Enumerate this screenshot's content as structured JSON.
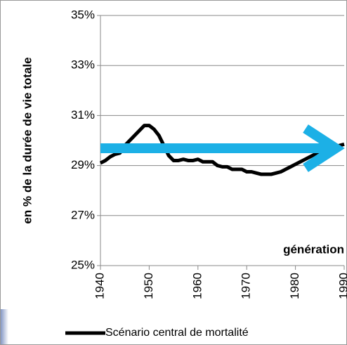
{
  "chart_data": {
    "type": "line",
    "y_axis_label": "en % de la durée de vie totale",
    "annotation": "génération",
    "x": [
      1940,
      1941,
      1942,
      1943,
      1944,
      1945,
      1946,
      1947,
      1948,
      1949,
      1950,
      1951,
      1952,
      1953,
      1954,
      1955,
      1956,
      1957,
      1958,
      1959,
      1960,
      1961,
      1962,
      1963,
      1964,
      1965,
      1966,
      1967,
      1968,
      1969,
      1970,
      1971,
      1972,
      1973,
      1974,
      1975,
      1976,
      1977,
      1978,
      1979,
      1980,
      1981,
      1982,
      1983,
      1984,
      1985,
      1986,
      1987,
      1988,
      1989,
      1990
    ],
    "series": [
      {
        "name": "Scénario central de mortalité",
        "color": "#000000",
        "values": [
          29.1,
          29.2,
          29.35,
          29.45,
          29.5,
          29.8,
          30.0,
          30.2,
          30.4,
          30.6,
          30.6,
          30.45,
          30.2,
          29.8,
          29.4,
          29.2,
          29.2,
          29.25,
          29.2,
          29.2,
          29.25,
          29.15,
          29.15,
          29.15,
          29.0,
          28.95,
          28.95,
          28.85,
          28.85,
          28.85,
          28.75,
          28.75,
          28.7,
          28.65,
          28.65,
          28.65,
          28.7,
          28.75,
          28.85,
          28.95,
          29.05,
          29.15,
          29.25,
          29.35,
          29.45,
          29.55,
          29.6,
          29.7,
          29.75,
          29.8,
          29.85
        ]
      }
    ],
    "xlim": [
      1940,
      1990
    ],
    "xticks": [
      1940,
      1950,
      1960,
      1970,
      1980,
      1990
    ],
    "ylim": [
      25,
      35
    ],
    "yticks": [
      {
        "value": 25,
        "label": "25%"
      },
      {
        "value": 27,
        "label": "27%"
      },
      {
        "value": 29,
        "label": "29%"
      },
      {
        "value": 31,
        "label": "31%"
      },
      {
        "value": 33,
        "label": "33%"
      },
      {
        "value": 35,
        "label": "35%"
      }
    ],
    "grid": true
  }
}
